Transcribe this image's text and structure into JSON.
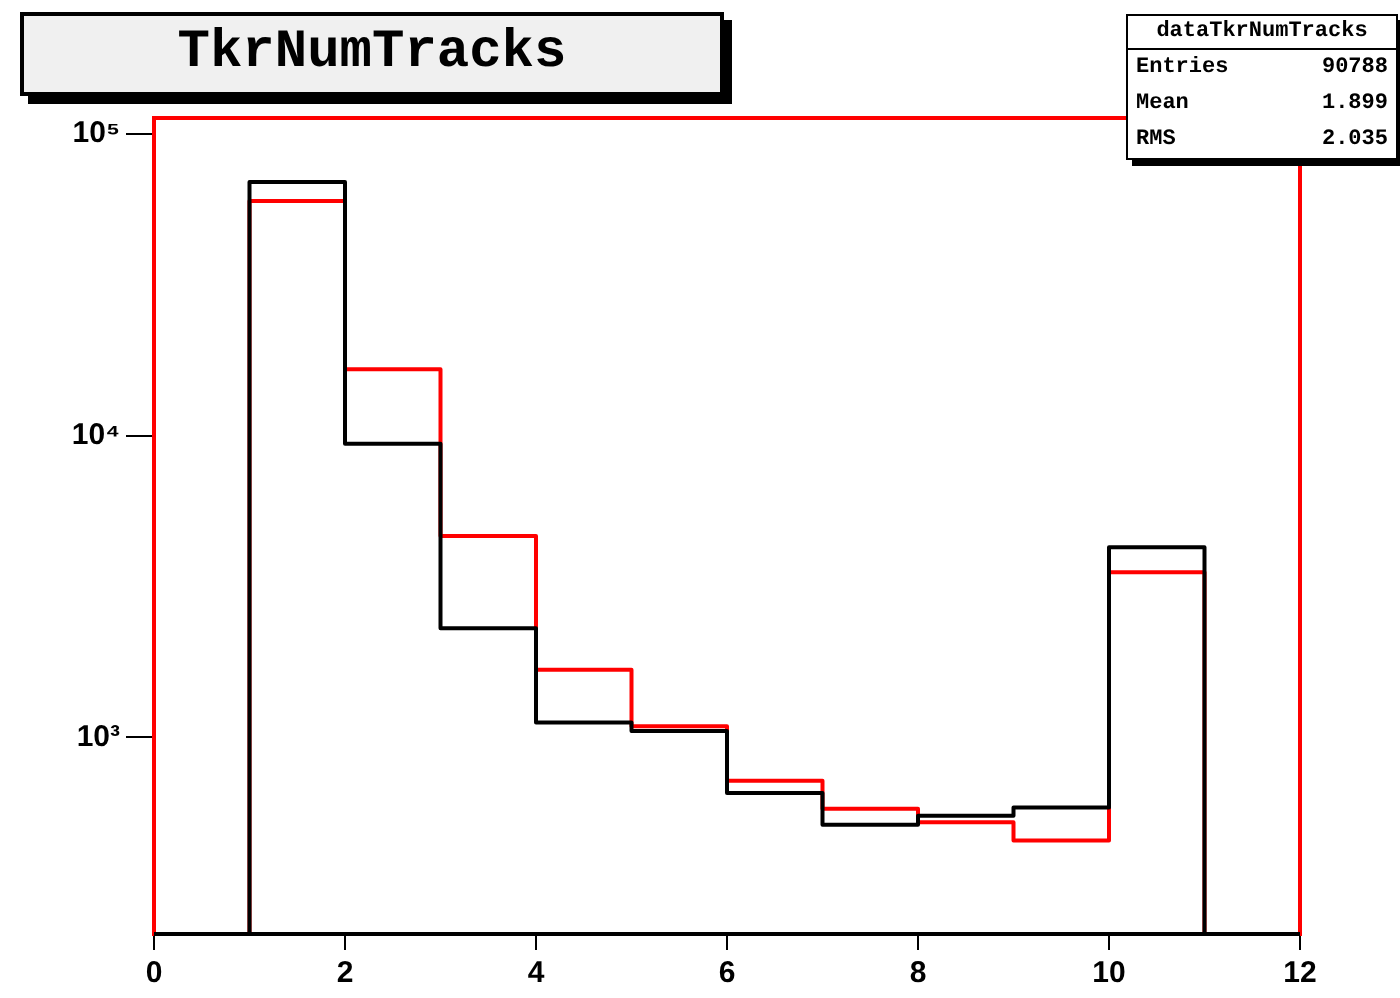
{
  "chart_data": {
    "type": "histogram",
    "title": "TkrNumTracks",
    "bins": [
      1,
      2,
      3,
      4,
      5,
      6,
      7,
      8,
      9,
      10,
      11
    ],
    "series": [
      {
        "color": "#000000",
        "values": [
          69300,
          9400,
          2300,
          1120,
          1050,
          654,
          513,
          550,
          586,
          4270
        ]
      },
      {
        "color": "#ff0000",
        "values": [
          60000,
          16600,
          4650,
          1675,
          1088,
          718,
          580,
          523,
          455,
          3530
        ]
      }
    ],
    "xlim": [
      0,
      12
    ],
    "xticks": [
      0,
      2,
      4,
      6,
      8,
      10,
      12
    ],
    "ylim": [
      223,
      113000
    ],
    "yticks": [
      {
        "value": 1000,
        "label": "10³"
      },
      {
        "value": 10000,
        "label": "10⁴"
      },
      {
        "value": 100000,
        "label": "10⁵"
      }
    ],
    "log": "y",
    "grid": false,
    "legend": false,
    "annotations": [
      "dataTkrNumTracks",
      "Entries 90788",
      "Mean 1.899",
      "RMS 2.035"
    ]
  }
}
